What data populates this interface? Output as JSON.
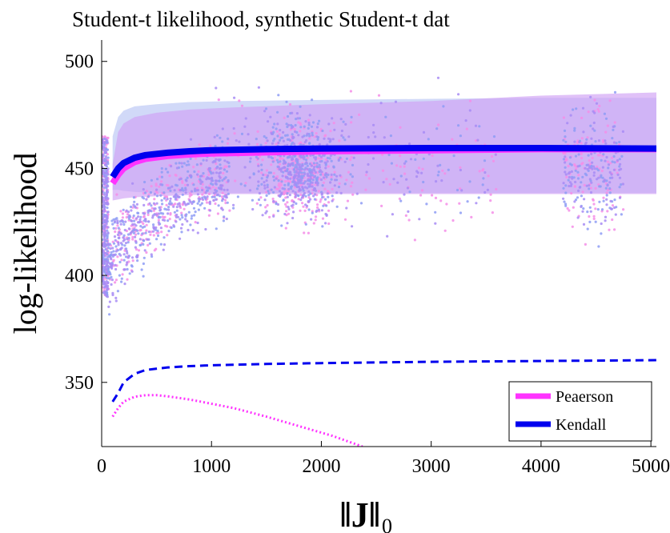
{
  "chart_data": {
    "type": "line",
    "title": "Student-t likelihood, synthetic Student-t dat",
    "xlabel": "‖J‖",
    "xlabel_subscript": "0",
    "ylabel": "log-likelihood",
    "xlim": [
      0,
      5050
    ],
    "ylim": [
      320,
      510
    ],
    "xticks": [
      "0",
      "1000",
      "2000",
      "3000",
      "4000",
      "5000"
    ],
    "yticks": [
      "350",
      "400",
      "450",
      "500"
    ],
    "xtick_values": [
      0,
      1000,
      2000,
      3000,
      4000,
      5000
    ],
    "ytick_values": [
      350,
      400,
      450,
      500
    ],
    "grid": false,
    "legend_position": "bottom-right",
    "series": [
      {
        "name": "Peaerson",
        "color": "#ff33ff",
        "style": "solid-thick",
        "x": [
          100,
          150,
          200,
          300,
          400,
          600,
          800,
          1000,
          1500,
          2000,
          3000,
          4000,
          5050
        ],
        "y": [
          443,
          447,
          450,
          453,
          454.5,
          455.8,
          456.5,
          457,
          457.5,
          458,
          458.5,
          459,
          459
        ]
      },
      {
        "name": "Kendall",
        "color": "#0000ee",
        "style": "solid-thick",
        "x": [
          100,
          150,
          200,
          300,
          400,
          600,
          800,
          1000,
          1500,
          2000,
          3000,
          4000,
          5050
        ],
        "y": [
          446,
          450,
          452.5,
          455,
          456.2,
          457.3,
          458,
          458.5,
          459,
          459.3,
          459.5,
          459.5,
          459.3
        ]
      },
      {
        "color": "#0000ee",
        "style": "dashed",
        "x": [
          100,
          150,
          200,
          300,
          400,
          600,
          800,
          1000,
          1500,
          2000,
          3000,
          4000,
          5050
        ],
        "y": [
          341,
          345,
          350,
          354,
          355.8,
          357,
          357.6,
          358,
          358.6,
          359,
          359.6,
          360,
          360.4
        ]
      },
      {
        "color": "#ff33ff",
        "style": "dotted",
        "x": [
          100,
          150,
          200,
          300,
          400,
          500,
          600,
          800,
          1000,
          1200,
          1500,
          1800,
          2100,
          2375
        ],
        "y": [
          334,
          338,
          341,
          343.3,
          344,
          344,
          343.5,
          342,
          340,
          338,
          334,
          329.5,
          325,
          320
        ]
      }
    ],
    "bands": [
      {
        "color": "#b8c4f4",
        "x": [
          100,
          150,
          200,
          300,
          500,
          800,
          1200,
          2000,
          3000,
          4000,
          5050
        ],
        "upper": [
          465,
          474,
          477,
          479,
          480,
          481,
          481.5,
          482,
          482.5,
          483,
          483
        ],
        "lower": [
          440,
          440,
          439.5,
          439,
          438.5,
          438.5,
          438.5,
          438.5,
          438.5,
          438.5,
          438.5
        ]
      },
      {
        "color": "#cfa0f4",
        "x": [
          100,
          150,
          200,
          300,
          500,
          800,
          1200,
          2000,
          3000,
          4000,
          5050
        ],
        "upper": [
          452,
          467,
          471,
          474,
          476,
          477.5,
          478.5,
          480,
          481.5,
          484,
          485.5
        ],
        "lower": [
          435,
          435.5,
          436,
          436.5,
          437,
          437.5,
          438,
          438,
          438,
          438,
          438
        ]
      }
    ],
    "scatter_clouds": [
      {
        "color": "#f58ee8",
        "x_range": [
          0,
          5000
        ],
        "y_range": [
          385,
          510
        ],
        "center_x": 1800,
        "center_y": 448
      },
      {
        "color": "#8e9cf5",
        "x_range": [
          0,
          5000
        ],
        "y_range": [
          385,
          510
        ],
        "center_x": 1800,
        "center_y": 452
      },
      {
        "color": "#a88cf5",
        "x_range": [
          0,
          5000
        ],
        "y_range": [
          385,
          510
        ],
        "center_x": 1800,
        "center_y": 450
      }
    ]
  }
}
